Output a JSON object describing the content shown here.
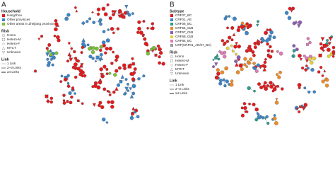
{
  "panels": [
    {
      "label": "A",
      "legends": [
        {
          "title": "Household",
          "items": [
            {
              "label": "Hangzhou",
              "color": "#e31a1c"
            },
            {
              "label": "Other provinces",
              "color": "#3a86c8"
            },
            {
              "label": "Other areas in Zhejiang province",
              "color": "#7cbf3a"
            }
          ]
        },
        {
          "title": "Risk",
          "items": [
            {
              "label": "Homo"
            },
            {
              "label": "Hetero-M"
            },
            {
              "label": "Hetero-F"
            },
            {
              "label": "MTCT"
            },
            {
              "label": "Unknown"
            }
          ]
        },
        {
          "title": "Link",
          "items": [
            {
              "label": "1 Link"
            },
            {
              "label": "2~3 Links"
            },
            {
              "label": "≥4 Links"
            }
          ]
        }
      ]
    },
    {
      "label": "B",
      "legends": [
        {
          "title": "Subtype",
          "items": [
            {
              "label": "CRF07_BC",
              "color": "#e31a1c"
            },
            {
              "label": "CRF01_AE",
              "color": "#3a86c8"
            },
            {
              "label": "CRF08_BC",
              "color": "#2a9d8f"
            },
            {
              "label": "CRF55_01B",
              "color": "#f08a24"
            },
            {
              "label": "CRF67_01B",
              "color": "#8e5bb5"
            },
            {
              "label": "CRF68_01B",
              "color": "#e8d13a"
            },
            {
              "label": "CRF85_BC",
              "color": "#e07bb8"
            },
            {
              "label": "URF(CRF01_AE/07_BC)",
              "color": "#9a9a9a"
            }
          ]
        },
        {
          "title": "Risk",
          "items": [
            {
              "label": "Homo"
            },
            {
              "label": "Hetero-M"
            },
            {
              "label": "Hetero-F"
            },
            {
              "label": "MTCT"
            },
            {
              "label": "Unknown"
            }
          ]
        },
        {
          "title": "Link",
          "items": [
            {
              "label": "1 Link"
            },
            {
              "label": "2~3 Links"
            },
            {
              "label": "≥4 Links"
            }
          ]
        }
      ]
    }
  ]
}
